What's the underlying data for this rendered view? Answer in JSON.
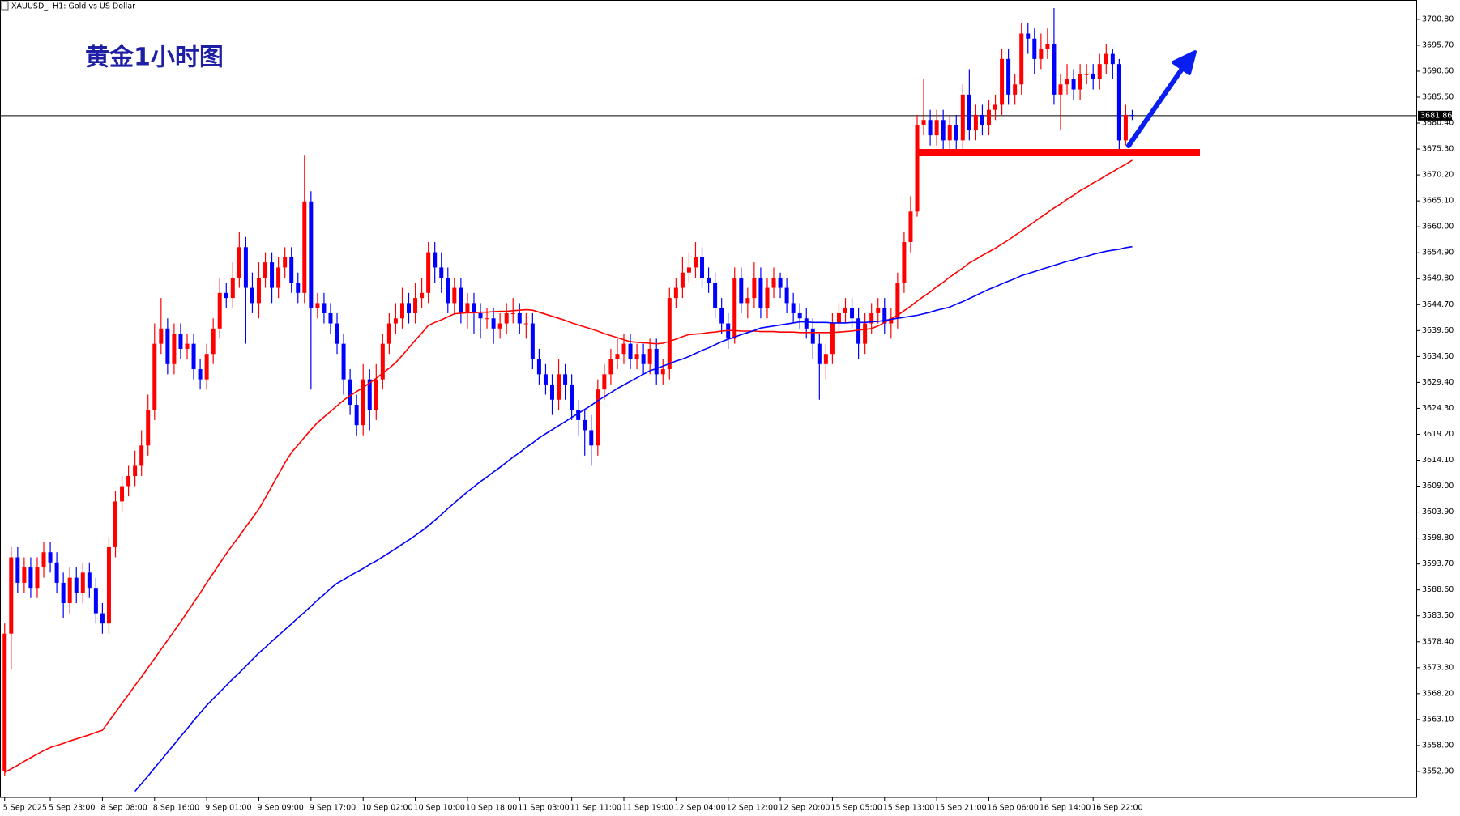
{
  "chart_data": {
    "type": "candlestick",
    "symbol_label": "XAUUSD_, H1:  Gold vs US Dollar",
    "title": "黄金1小时图",
    "up_color": "#ff0000",
    "down_color": "#0000ff",
    "categories": [
      "5 Sep 2025",
      null,
      null,
      null,
      null,
      null,
      null,
      "5 Sep 23:00",
      null,
      null,
      null,
      null,
      null,
      null,
      null,
      "8 Sep 08:00",
      null,
      null,
      null,
      null,
      null,
      null,
      null,
      "8 Sep 16:00",
      null,
      null,
      null,
      null,
      null,
      null,
      null,
      "9 Sep 01:00",
      null,
      null,
      null,
      null,
      null,
      null,
      null,
      "9 Sep 09:00",
      null,
      null,
      null,
      null,
      null,
      null,
      null,
      "9 Sep 17:00",
      null,
      null,
      null,
      null,
      null,
      null,
      null,
      "10 Sep 02:00",
      null,
      null,
      null,
      null,
      null,
      null,
      null,
      "10 Sep 10:00",
      null,
      null,
      null,
      null,
      null,
      null,
      null,
      "10 Sep 18:00",
      null,
      null,
      null,
      null,
      null,
      null,
      null,
      "11 Sep 03:00",
      null,
      null,
      null,
      null,
      null,
      null,
      null,
      "11 Sep 11:00",
      null,
      null,
      null,
      null,
      null,
      null,
      null,
      "11 Sep 19:00",
      null,
      null,
      null,
      null,
      null,
      null,
      null,
      "12 Sep 04:00",
      null,
      null,
      null,
      null,
      null,
      null,
      null,
      "12 Sep 12:00",
      null,
      null,
      null,
      null,
      null,
      null,
      null,
      "12 Sep 20:00",
      null,
      null,
      null,
      null,
      null,
      null,
      null,
      "15 Sep 05:00",
      null,
      null,
      null,
      null,
      null,
      null,
      null,
      "15 Sep 13:00",
      null,
      null,
      null,
      null,
      null,
      null,
      null,
      "15 Sep 21:00",
      null,
      null,
      null,
      null,
      null,
      null,
      null,
      "16 Sep 06:00",
      null,
      null,
      null,
      null,
      null,
      null,
      null,
      "16 Sep 14:00",
      null,
      null,
      null,
      null,
      null,
      null,
      null,
      "16 Sep 22:00",
      null,
      null,
      null,
      null,
      null,
      null
    ],
    "open": [
      3553,
      3580,
      3595,
      3590,
      3593,
      3589,
      3593,
      3596,
      3594,
      3590,
      3586,
      3591,
      3588,
      3592,
      3589,
      3584,
      3582,
      3597,
      3606,
      3609,
      3611,
      3613,
      3617,
      3624,
      3637,
      3640,
      3633,
      3639,
      3636,
      3637,
      3632,
      3630,
      3635,
      3640,
      3647,
      3646,
      3650,
      3656,
      3648,
      3645,
      3650,
      3653,
      3648,
      3652,
      3654,
      3649,
      3647,
      3665,
      3644,
      3645,
      3643,
      3641,
      3637,
      3630,
      3625,
      3621,
      3630,
      3624,
      3630,
      3637,
      3641,
      3642,
      3645,
      3643,
      3646,
      3647,
      3655,
      3652,
      3650,
      3645,
      3648,
      3643,
      3645,
      3643,
      3642,
      3642,
      3640,
      3641,
      3643,
      3643,
      3641,
      3641,
      3634,
      3631,
      3629,
      3626,
      3631,
      3629,
      3624,
      3622,
      3620,
      3617,
      3628,
      3631,
      3634,
      3635,
      3637,
      3634,
      3635,
      3633,
      3636,
      3631,
      3632,
      3646,
      3648,
      3651,
      3652,
      3654,
      3650,
      3649,
      3644,
      3641,
      3638,
      3650,
      3645,
      3646,
      3650,
      3644,
      3648,
      3650,
      3648,
      3645,
      3643,
      3642,
      3640,
      3637,
      3633,
      3635,
      3641,
      3643,
      3644,
      3642,
      3637,
      3641,
      3643,
      3644,
      3641,
      3642,
      3649,
      3657,
      3663,
      3680,
      3681,
      3678,
      3681,
      3677,
      3680,
      3677,
      3686,
      3679,
      3682,
      3680,
      3683,
      3684,
      3693,
      3686,
      3688,
      3698,
      3697,
      3693,
      3695,
      3696,
      3686,
      3688,
      3689,
      3687,
      3690,
      3690,
      3689,
      3692,
      3694,
      3692,
      3677,
      3682
    ],
    "high": [
      3582,
      3597,
      3597,
      3595,
      3595,
      3595,
      3598,
      3598,
      3596,
      3592,
      3593,
      3593,
      3594,
      3594,
      3591,
      3586,
      3599,
      3608,
      3611,
      3613,
      3616,
      3620,
      3627,
      3641,
      3646,
      3642,
      3641,
      3641,
      3639,
      3639,
      3634,
      3637,
      3642,
      3650,
      3649,
      3653,
      3659,
      3658,
      3651,
      3653,
      3655,
      3655,
      3654,
      3656,
      3656,
      3651,
      3674,
      3667,
      3647,
      3647,
      3645,
      3643,
      3639,
      3632,
      3627,
      3633,
      3632,
      3633,
      3639,
      3643,
      3645,
      3648,
      3647,
      3649,
      3650,
      3657,
      3657,
      3655,
      3652,
      3650,
      3650,
      3647,
      3647,
      3645,
      3644,
      3644,
      3643,
      3645,
      3646,
      3645,
      3643,
      3643,
      3636,
      3633,
      3631,
      3634,
      3633,
      3631,
      3626,
      3624,
      3623,
      3630,
      3633,
      3636,
      3638,
      3639,
      3639,
      3637,
      3637,
      3638,
      3638,
      3634,
      3648,
      3650,
      3654,
      3655,
      3657,
      3656,
      3652,
      3651,
      3646,
      3643,
      3652,
      3652,
      3648,
      3653,
      3652,
      3650,
      3652,
      3651,
      3650,
      3647,
      3645,
      3644,
      3642,
      3639,
      3637,
      3643,
      3645,
      3646,
      3646,
      3644,
      3643,
      3645,
      3646,
      3646,
      3644,
      3651,
      3659,
      3666,
      3682,
      3689,
      3683,
      3683,
      3683,
      3682,
      3682,
      3688,
      3691,
      3684,
      3684,
      3685,
      3686,
      3695,
      3695,
      3690,
      3700,
      3700,
      3699,
      3698,
      3699,
      3703,
      3690,
      3692,
      3691,
      3692,
      3692,
      3692,
      3694,
      3696,
      3695,
      3693,
      3684,
      3683
    ],
    "low": [
      3552,
      3573,
      3588,
      3588,
      3587,
      3587,
      3591,
      3592,
      3588,
      3583,
      3584,
      3586,
      3586,
      3587,
      3582,
      3580,
      3580,
      3595,
      3604,
      3607,
      3609,
      3611,
      3615,
      3622,
      3635,
      3631,
      3631,
      3634,
      3634,
      3630,
      3628,
      3628,
      3633,
      3638,
      3644,
      3644,
      3648,
      3637,
      3643,
      3642,
      3648,
      3645,
      3646,
      3650,
      3647,
      3645,
      3645,
      3628,
      3642,
      3641,
      3639,
      3635,
      3627,
      3623,
      3619,
      3619,
      3620,
      3622,
      3628,
      3635,
      3639,
      3640,
      3641,
      3641,
      3644,
      3645,
      3649,
      3647,
      3643,
      3643,
      3641,
      3640,
      3639,
      3638,
      3640,
      3637,
      3638,
      3639,
      3641,
      3639,
      3638,
      3632,
      3629,
      3627,
      3623,
      3624,
      3626,
      3622,
      3619,
      3615,
      3613,
      3615,
      3626,
      3629,
      3632,
      3633,
      3632,
      3632,
      3631,
      3631,
      3629,
      3629,
      3630,
      3644,
      3646,
      3649,
      3650,
      3648,
      3647,
      3642,
      3639,
      3636,
      3637,
      3643,
      3642,
      3644,
      3642,
      3642,
      3646,
      3646,
      3643,
      3641,
      3640,
      3638,
      3634,
      3626,
      3630,
      3633,
      3639,
      3641,
      3640,
      3634,
      3635,
      3639,
      3641,
      3639,
      3638,
      3640,
      3647,
      3655,
      3662,
      3678,
      3676,
      3676,
      3675,
      3675,
      3675,
      3675,
      3677,
      3677,
      3678,
      3678,
      3681,
      3682,
      3684,
      3684,
      3686,
      3694,
      3690,
      3691,
      3693,
      3684,
      3679,
      3686,
      3685,
      3685,
      3688,
      3687,
      3687,
      3690,
      3689,
      3675,
      3676,
      3681
    ],
    "close": [
      3580,
      3595,
      3590,
      3593,
      3589,
      3593,
      3596,
      3594,
      3590,
      3586,
      3591,
      3588,
      3592,
      3589,
      3584,
      3582,
      3597,
      3606,
      3609,
      3611,
      3613,
      3617,
      3624,
      3637,
      3640,
      3633,
      3639,
      3636,
      3637,
      3632,
      3630,
      3635,
      3640,
      3647,
      3646,
      3650,
      3656,
      3648,
      3645,
      3650,
      3653,
      3648,
      3652,
      3654,
      3649,
      3647,
      3665,
      3644,
      3645,
      3643,
      3641,
      3637,
      3630,
      3625,
      3621,
      3630,
      3624,
      3630,
      3637,
      3641,
      3642,
      3645,
      3643,
      3646,
      3647,
      3655,
      3652,
      3650,
      3645,
      3648,
      3643,
      3645,
      3643,
      3642,
      3642,
      3640,
      3641,
      3643,
      3643,
      3641,
      3641,
      3634,
      3631,
      3629,
      3626,
      3631,
      3629,
      3624,
      3622,
      3620,
      3617,
      3628,
      3631,
      3634,
      3635,
      3637,
      3634,
      3635,
      3633,
      3636,
      3631,
      3632,
      3646,
      3648,
      3651,
      3652,
      3654,
      3650,
      3649,
      3644,
      3641,
      3638,
      3650,
      3645,
      3646,
      3650,
      3644,
      3648,
      3650,
      3648,
      3645,
      3643,
      3642,
      3640,
      3637,
      3633,
      3635,
      3641,
      3643,
      3644,
      3642,
      3637,
      3641,
      3643,
      3644,
      3641,
      3642,
      3649,
      3657,
      3663,
      3680,
      3681,
      3678,
      3681,
      3677,
      3680,
      3677,
      3686,
      3679,
      3682,
      3680,
      3683,
      3684,
      3693,
      3686,
      3688,
      3698,
      3697,
      3693,
      3695,
      3696,
      3686,
      3688,
      3689,
      3687,
      3690,
      3690,
      3689,
      3692,
      3694,
      3692,
      3677,
      3682,
      3681.86
    ],
    "moving_averages": [
      {
        "color": "#ff0000",
        "values": [
          3552.7,
          3553.4,
          3554.1,
          3554.9,
          3555.6,
          3556.3,
          3557.0,
          3557.6,
          3558.0,
          3558.4,
          3558.9,
          3559.3,
          3559.7,
          3560.1,
          3560.6,
          3561.0,
          3562.8,
          3564.5,
          3566.3,
          3568.0,
          3569.8,
          3571.5,
          3573.3,
          3575.1,
          3576.9,
          3578.7,
          3580.5,
          3582.3,
          3584.2,
          3586.1,
          3588.0,
          3590.0,
          3591.9,
          3593.8,
          3595.7,
          3597.5,
          3599.2,
          3601.0,
          3602.7,
          3604.5,
          3606.7,
          3609.0,
          3611.3,
          3613.6,
          3615.6,
          3617.1,
          3618.6,
          3620.1,
          3621.5,
          3622.6,
          3623.7,
          3624.8,
          3625.9,
          3626.8,
          3627.6,
          3628.4,
          3629.3,
          3630.2,
          3631.2,
          3632.2,
          3633.3,
          3634.7,
          3636.2,
          3637.7,
          3639.1,
          3640.6,
          3641.2,
          3641.7,
          3642.3,
          3642.9,
          3643.0,
          3643.1,
          3643.1,
          3643.2,
          3643.2,
          3643.3,
          3643.4,
          3643.4,
          3643.5,
          3643.6,
          3643.7,
          3643.6,
          3643.2,
          3642.8,
          3642.4,
          3642.0,
          3641.6,
          3641.1,
          3640.7,
          3640.3,
          3639.9,
          3639.5,
          3639.0,
          3638.6,
          3638.2,
          3637.8,
          3637.4,
          3637.3,
          3637.2,
          3637.1,
          3637.0,
          3637.1,
          3637.5,
          3637.9,
          3638.4,
          3638.8,
          3638.9,
          3639.0,
          3639.2,
          3639.3,
          3639.5,
          3639.6,
          3639.6,
          3639.5,
          3639.5,
          3639.5,
          3639.4,
          3639.4,
          3639.4,
          3639.3,
          3639.3,
          3639.3,
          3639.2,
          3639.2,
          3639.2,
          3639.2,
          3639.2,
          3639.2,
          3639.3,
          3639.4,
          3639.5,
          3639.7,
          3639.8,
          3640.0,
          3640.5,
          3641.2,
          3641.9,
          3642.6,
          3643.5,
          3644.4,
          3645.4,
          3646.3,
          3647.2,
          3648.2,
          3649.1,
          3650.1,
          3651.0,
          3651.9,
          3652.9,
          3653.6,
          3654.4,
          3655.1,
          3655.8,
          3656.6,
          3657.4,
          3658.3,
          3659.2,
          3660.1,
          3661.0,
          3661.9,
          3662.8,
          3663.7,
          3664.5,
          3665.4,
          3666.2,
          3667.1,
          3667.8,
          3668.6,
          3669.3,
          3670.1,
          3670.8,
          3671.6,
          3672.3,
          3673.1
        ]
      },
      {
        "color": "#0000ff",
        "values": [
          null,
          null,
          null,
          null,
          null,
          null,
          null,
          null,
          null,
          null,
          null,
          null,
          null,
          null,
          null,
          null,
          null,
          null,
          null,
          null,
          3549.0,
          3550.5,
          3552.0,
          3553.6,
          3555.1,
          3556.7,
          3558.2,
          3559.8,
          3561.3,
          3562.9,
          3564.4,
          3565.9,
          3567.2,
          3568.5,
          3569.8,
          3571.1,
          3572.3,
          3573.6,
          3574.9,
          3576.2,
          3577.3,
          3578.5,
          3579.6,
          3580.8,
          3581.9,
          3583.1,
          3584.2,
          3585.4,
          3586.6,
          3587.7,
          3588.9,
          3589.9,
          3590.6,
          3591.4,
          3592.1,
          3592.8,
          3593.6,
          3594.3,
          3595.1,
          3595.9,
          3596.7,
          3597.6,
          3598.4,
          3599.3,
          3600.2,
          3601.2,
          3602.3,
          3603.4,
          3604.6,
          3605.7,
          3606.8,
          3607.9,
          3608.9,
          3609.9,
          3610.8,
          3611.8,
          3612.7,
          3613.7,
          3614.7,
          3615.6,
          3616.6,
          3617.5,
          3618.5,
          3619.3,
          3620.1,
          3620.9,
          3621.7,
          3622.5,
          3623.3,
          3624.1,
          3624.9,
          3625.8,
          3626.6,
          3627.4,
          3628.2,
          3628.9,
          3629.6,
          3630.3,
          3631.0,
          3631.7,
          3632.1,
          3632.6,
          3633.1,
          3633.6,
          3634.0,
          3634.5,
          3635.1,
          3635.7,
          3636.2,
          3636.8,
          3637.4,
          3637.9,
          3638.3,
          3638.8,
          3639.2,
          3639.6,
          3640.1,
          3640.3,
          3640.5,
          3640.7,
          3640.9,
          3641.1,
          3641.3,
          3641.3,
          3641.2,
          3641.2,
          3641.2,
          3641.1,
          3641.1,
          3641.1,
          3641.2,
          3641.2,
          3641.2,
          3641.3,
          3641.4,
          3641.6,
          3641.8,
          3642.0,
          3642.2,
          3642.4,
          3642.6,
          3642.9,
          3643.2,
          3643.6,
          3643.9,
          3644.2,
          3644.8,
          3645.3,
          3645.9,
          3646.5,
          3647.1,
          3647.7,
          3648.2,
          3648.8,
          3649.3,
          3649.8,
          3650.4,
          3650.8,
          3651.2,
          3651.6,
          3652.0,
          3652.4,
          3652.8,
          3653.2,
          3653.5,
          3653.9,
          3654.2,
          3654.6,
          3654.9,
          3655.2,
          3655.4,
          3655.6,
          3655.9,
          3656.1
        ]
      }
    ],
    "current_price": 3681.86,
    "support_level": 3674.6,
    "support_color": "#ff0000",
    "ylim": [
      3547.8,
      3704.6
    ],
    "yticks": [
      {
        "value": 3700.8,
        "label": "3700.80"
      },
      {
        "value": 3695.7,
        "label": "3695.70"
      },
      {
        "value": 3690.6,
        "label": "3690.60"
      },
      {
        "value": 3685.5,
        "label": "3685.50"
      },
      {
        "value": 3680.4,
        "label": "3680.40"
      },
      {
        "value": 3675.3,
        "label": "3675.30"
      },
      {
        "value": 3670.2,
        "label": "3670.20"
      },
      {
        "value": 3665.1,
        "label": "3665.10"
      },
      {
        "value": 3660,
        "label": "3660.00"
      },
      {
        "value": 3654.9,
        "label": "3654.90"
      },
      {
        "value": 3649.8,
        "label": "3649.80"
      },
      {
        "value": 3644.7,
        "label": "3644.70"
      },
      {
        "value": 3639.6,
        "label": "3639.60"
      },
      {
        "value": 3634.5,
        "label": "3634.50"
      },
      {
        "value": 3629.4,
        "label": "3629.40"
      },
      {
        "value": 3624.3,
        "label": "3624.30"
      },
      {
        "value": 3619.2,
        "label": "3619.20"
      },
      {
        "value": 3614.1,
        "label": "3614.10"
      },
      {
        "value": 3609,
        "label": "3609.00"
      },
      {
        "value": 3603.9,
        "label": "3603.90"
      },
      {
        "value": 3598.8,
        "label": "3598.80"
      },
      {
        "value": 3593.7,
        "label": "3593.70"
      },
      {
        "value": 3588.6,
        "label": "3588.60"
      },
      {
        "value": 3583.5,
        "label": "3583.50"
      },
      {
        "value": 3578.4,
        "label": "3578.40"
      },
      {
        "value": 3573.3,
        "label": "3573.30"
      },
      {
        "value": 3568.2,
        "label": "3568.20"
      },
      {
        "value": 3563.1,
        "label": "3563.10"
      },
      {
        "value": 3558,
        "label": "3558.00"
      },
      {
        "value": 3552.9,
        "label": "3552.90"
      }
    ]
  }
}
